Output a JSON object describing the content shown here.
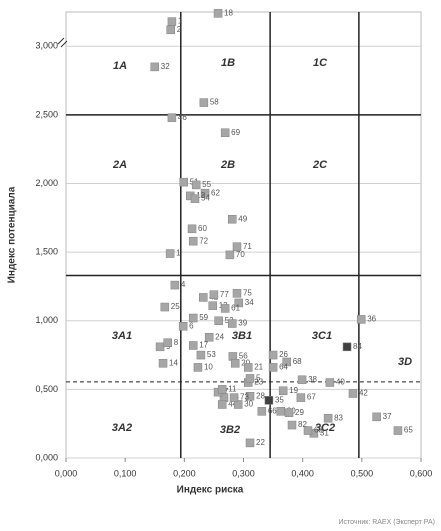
{
  "chart_data": {
    "type": "scatter",
    "x_label": "Индекс риска",
    "y_label": "Индекс потенциала",
    "source": "Источник: RAEX (Эксперт РА)",
    "xlim": [
      0,
      0.6
    ],
    "ylim": [
      0,
      3.25
    ],
    "xticks": [
      {
        "value": 0,
        "label": "0,000"
      },
      {
        "value": 0.1,
        "label": "0,100"
      },
      {
        "value": 0.2,
        "label": "0,200"
      },
      {
        "value": 0.3,
        "label": "0,300"
      },
      {
        "value": 0.4,
        "label": "0,400"
      },
      {
        "value": 0.5,
        "label": "0,500"
      },
      {
        "value": 0.6,
        "label": "0,600"
      }
    ],
    "yticks": [
      {
        "value": 0,
        "label": "0,000"
      },
      {
        "value": 0.5,
        "label": "0,500"
      },
      {
        "value": 1,
        "label": "1,000"
      },
      {
        "value": 1.5,
        "label": "1,500"
      },
      {
        "value": 2,
        "label": "2,000"
      },
      {
        "value": 2.5,
        "label": "2,500"
      },
      {
        "value": 3,
        "label": "3,000"
      }
    ],
    "grid": true,
    "vlines": [
      0.194,
      0.345,
      0.495
    ],
    "hlines": [
      2.5,
      1.33
    ],
    "dashed_hline": 0.555,
    "zones": [
      "1A",
      "1B",
      "1C",
      "2A",
      "2B",
      "2C",
      "3A1",
      "3B1",
      "3C1",
      "3D",
      "3A2",
      "3B2",
      "3C2"
    ],
    "series": [
      {
        "name": "Регионы",
        "labels": [
          "18",
          "1",
          "2",
          "32",
          "58",
          "46",
          "69",
          "51",
          "55",
          "62",
          "13",
          "54",
          "49",
          "60",
          "72",
          "71",
          "70",
          "1",
          "4",
          "25",
          "42",
          "77",
          "75",
          "34",
          "12",
          "61",
          "52",
          "59",
          "6",
          "24",
          "39",
          "9",
          "8",
          "17",
          "56",
          "53",
          "14",
          "10",
          "20",
          "21",
          "26",
          "68",
          "64",
          "36",
          "84",
          "38",
          "40",
          "42",
          "19",
          "67",
          "37",
          "65",
          "83",
          "31",
          "63",
          "80",
          "82",
          "29",
          "23",
          "35",
          "66",
          "45",
          "44",
          "30",
          "28",
          "22",
          "7",
          "11",
          "73",
          "5"
        ],
        "x": [
          0.257,
          0.179,
          0.177,
          0.15,
          0.233,
          0.179,
          0.269,
          0.199,
          0.22,
          0.235,
          0.21,
          0.218,
          0.281,
          0.213,
          0.215,
          0.289,
          0.277,
          0.176,
          0.184,
          0.167,
          0.232,
          0.25,
          0.289,
          0.292,
          0.248,
          0.269,
          0.258,
          0.215,
          0.198,
          0.242,
          0.281,
          0.159,
          0.172,
          0.215,
          0.282,
          0.228,
          0.164,
          0.223,
          0.286,
          0.308,
          0.35,
          0.373,
          0.35,
          0.499,
          0.475,
          0.399,
          0.446,
          0.485,
          0.367,
          0.397,
          0.525,
          0.561,
          0.443,
          0.419,
          0.409,
          0.363,
          0.382,
          0.377,
          0.308,
          0.343,
          0.331,
          0.267,
          0.264,
          0.291,
          0.311,
          0.311,
          0.257,
          0.264,
          0.284,
          0.311
        ],
        "y": [
          3.24,
          3.18,
          3.12,
          2.85,
          2.59,
          2.48,
          2.37,
          2.01,
          1.99,
          1.93,
          1.91,
          1.89,
          1.74,
          1.67,
          1.58,
          1.54,
          1.48,
          1.49,
          1.26,
          1.1,
          1.17,
          1.19,
          1.2,
          1.13,
          1.11,
          1.09,
          1.0,
          1.02,
          0.96,
          0.88,
          0.98,
          0.81,
          0.84,
          0.82,
          0.74,
          0.75,
          0.69,
          0.66,
          0.69,
          0.66,
          0.75,
          0.7,
          0.66,
          1.01,
          0.81,
          0.57,
          0.55,
          0.47,
          0.49,
          0.44,
          0.3,
          0.2,
          0.29,
          0.18,
          0.2,
          0.34,
          0.24,
          0.33,
          0.55,
          0.42,
          0.34,
          0.44,
          0.39,
          0.39,
          0.45,
          0.11,
          0.48,
          0.5,
          0.44,
          0.58
        ],
        "colors": [
          "#a6a6a6",
          "#a6a6a6",
          "#a6a6a6",
          "#a6a6a6",
          "#a6a6a6",
          "#a6a6a6",
          "#a6a6a6",
          "#a6a6a6",
          "#a6a6a6",
          "#a6a6a6",
          "#a6a6a6",
          "#a6a6a6",
          "#a6a6a6",
          "#a6a6a6",
          "#a6a6a6",
          "#a6a6a6",
          "#a6a6a6",
          "#a6a6a6",
          "#a6a6a6",
          "#a6a6a6",
          "#a6a6a6",
          "#a6a6a6",
          "#a6a6a6",
          "#a6a6a6",
          "#a6a6a6",
          "#a6a6a6",
          "#a6a6a6",
          "#a6a6a6",
          "#a6a6a6",
          "#a6a6a6",
          "#a6a6a6",
          "#a6a6a6",
          "#a6a6a6",
          "#a6a6a6",
          "#a6a6a6",
          "#a6a6a6",
          "#a6a6a6",
          "#a6a6a6",
          "#a6a6a6",
          "#a6a6a6",
          "#a6a6a6",
          "#a6a6a6",
          "#a6a6a6",
          "#a6a6a6",
          "#404040",
          "#a6a6a6",
          "#a6a6a6",
          "#a6a6a6",
          "#a6a6a6",
          "#a6a6a6",
          "#a6a6a6",
          "#a6a6a6",
          "#a6a6a6",
          "#a6a6a6",
          "#a6a6a6",
          "#a6a6a6",
          "#a6a6a6",
          "#a6a6a6",
          "#a6a6a6",
          "#404040",
          "#a6a6a6",
          "#a6a6a6",
          "#a6a6a6",
          "#a6a6a6",
          "#a6a6a6",
          "#a6a6a6",
          "#a6a6a6",
          "#a6a6a6",
          "#a6a6a6",
          "#a6a6a6"
        ]
      }
    ]
  }
}
